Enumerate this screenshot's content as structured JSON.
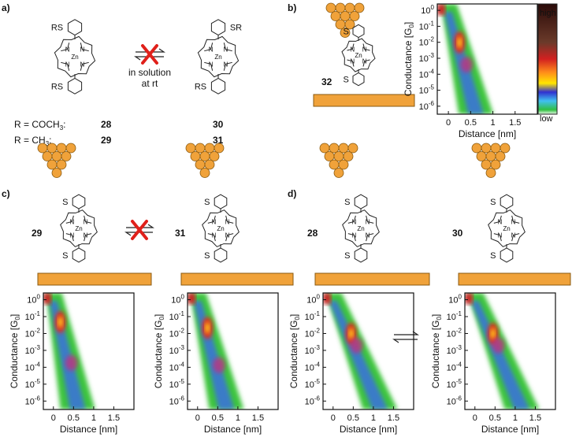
{
  "panels": {
    "a": {
      "label": "a)",
      "condition": [
        "in solution",
        "at rt"
      ],
      "rows": [
        {
          "r": "R = COCH",
          "r_sub": "3",
          "r_colon": ":",
          "left": "28",
          "right": "30"
        },
        {
          "r": "R = CH",
          "r_sub": "3",
          "r_colon": ":",
          "left": "29",
          "right": "31"
        }
      ]
    },
    "b": {
      "label": "b)",
      "compound": "32",
      "colorbar": {
        "high": "high",
        "low": "low"
      }
    },
    "c": {
      "label": "c)",
      "compounds": [
        "29",
        "31"
      ]
    },
    "d": {
      "label": "d)",
      "compounds": [
        "28",
        "30"
      ]
    }
  },
  "atoms": {
    "metal": "Zn",
    "nitrogen": "N",
    "sulfur": "S",
    "rs": "RS",
    "sr": "SR"
  },
  "axis": {
    "ylabel": {
      "text": "Conductance [G",
      "sub": "0",
      "end": "]"
    },
    "xlabel": "Distance [nm]",
    "xlim": [
      -0.25,
      2.0
    ],
    "xticks": [
      0,
      0.5,
      1,
      1.5
    ],
    "ylim": [
      -6.5,
      0.4
    ],
    "yticks": [
      {
        "value": 0,
        "label": "10",
        "exp": "0"
      },
      {
        "value": -1,
        "label": "10",
        "exp": "-1"
      },
      {
        "value": -2,
        "label": "10",
        "exp": "-2"
      },
      {
        "value": -3,
        "label": "10",
        "exp": "-3"
      },
      {
        "value": -4,
        "label": "10",
        "exp": "-4"
      },
      {
        "value": -5,
        "label": "10",
        "exp": "-5"
      },
      {
        "value": -6,
        "label": "10",
        "exp": "-6"
      }
    ]
  }
}
